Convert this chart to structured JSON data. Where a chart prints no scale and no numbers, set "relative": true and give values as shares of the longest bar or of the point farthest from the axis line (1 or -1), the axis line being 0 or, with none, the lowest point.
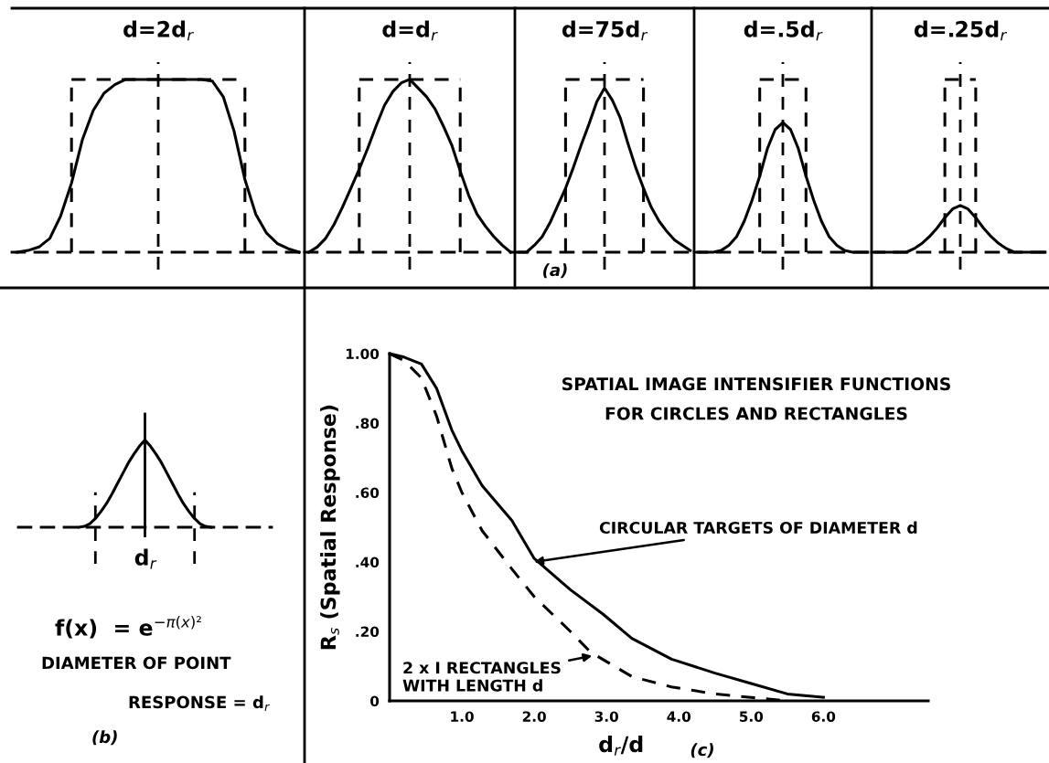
{
  "chart_data": [
    {
      "type": "line",
      "relative": true,
      "title": "d=2d$_{r}$",
      "categories": [
        null,
        null,
        null,
        null,
        null,
        null,
        null,
        null,
        null,
        null,
        null,
        null,
        null,
        null,
        null,
        null,
        null,
        null,
        null,
        null,
        null,
        null,
        null,
        null,
        null,
        null,
        null
      ],
      "series": [
        {
          "type": "line",
          "color": "#000000",
          "line_style": "solid",
          "values": [
            0,
            0.01,
            0.03,
            0.08,
            0.21,
            0.4,
            0.65,
            0.82,
            0.92,
            0.97,
            1,
            1,
            1,
            1,
            1,
            1,
            1,
            1,
            0.99,
            0.9,
            0.7,
            0.42,
            0.22,
            0.11,
            0.05,
            0.02,
            0
          ]
        },
        {
          "type": "step",
          "color": "#000000",
          "line_style": "dashed",
          "values": [
            null,
            null,
            null,
            null,
            null,
            1,
            1,
            1,
            1,
            1,
            1,
            1,
            1,
            1,
            1,
            1,
            1,
            1,
            1,
            1,
            1,
            1,
            null,
            null,
            null,
            null,
            null
          ]
        }
      ]
    },
    {
      "type": "line",
      "relative": true,
      "title": "d=d$_{r}$",
      "categories": [
        null,
        null,
        null,
        null,
        null,
        null,
        null,
        null,
        null,
        null,
        null,
        null,
        null,
        null,
        null,
        null,
        null,
        null,
        null,
        null,
        null,
        null,
        null,
        null,
        null
      ],
      "series": [
        {
          "type": "line",
          "color": "#000000",
          "line_style": "solid",
          "values": [
            0,
            0.03,
            0.08,
            0.16,
            0.26,
            0.37,
            0.48,
            0.6,
            0.73,
            0.85,
            0.93,
            0.98,
            1,
            0.95,
            0.9,
            0.83,
            0.73,
            0.62,
            0.47,
            0.33,
            0.22,
            0.15,
            0.09,
            0.04,
            0
          ]
        },
        {
          "type": "step",
          "color": "#000000",
          "line_style": "dashed",
          "values": [
            null,
            null,
            null,
            null,
            null,
            null,
            1,
            1,
            1,
            1,
            1,
            1,
            1,
            1,
            1,
            1,
            1,
            1,
            1,
            null,
            null,
            null,
            null,
            null,
            null
          ]
        }
      ]
    },
    {
      "type": "line",
      "relative": true,
      "title": "d=75d$_{r}$",
      "annotations": [
        "(a)"
      ],
      "categories": [
        null,
        null,
        null,
        null,
        null,
        null,
        null,
        null,
        null,
        null,
        null,
        null,
        null,
        null,
        null,
        null,
        null,
        null,
        null,
        null,
        null,
        null,
        null
      ],
      "series": [
        {
          "type": "line",
          "color": "#000000",
          "line_style": "solid",
          "values": [
            0,
            0,
            0.04,
            0.09,
            0.17,
            0.27,
            0.37,
            0.49,
            0.62,
            0.74,
            0.87,
            0.95,
            0.88,
            0.78,
            0.63,
            0.49,
            0.37,
            0.26,
            0.18,
            0.12,
            0.07,
            0.04,
            0.01
          ]
        },
        {
          "type": "step",
          "color": "#000000",
          "line_style": "dashed",
          "values": [
            null,
            null,
            null,
            null,
            null,
            null,
            1,
            1,
            1,
            1,
            1,
            1,
            1,
            1,
            1,
            1,
            1,
            null,
            null,
            null,
            null,
            null,
            null
          ]
        }
      ]
    },
    {
      "type": "line",
      "relative": true,
      "title": "d=.5d$_{r}$",
      "categories": [
        null,
        null,
        null,
        null,
        null,
        null,
        null,
        null,
        null,
        null,
        null,
        null,
        null,
        null,
        null,
        null,
        null,
        null,
        null,
        null,
        null,
        null,
        null
      ],
      "series": [
        {
          "type": "line",
          "color": "#000000",
          "line_style": "solid",
          "values": [
            0,
            0,
            0,
            0.01,
            0.04,
            0.09,
            0.18,
            0.3,
            0.44,
            0.6,
            0.71,
            0.75,
            0.71,
            0.6,
            0.44,
            0.3,
            0.18,
            0.09,
            0.04,
            0.01,
            0,
            0,
            0
          ]
        },
        {
          "type": "step",
          "color": "#000000",
          "line_style": "dashed",
          "values": [
            null,
            null,
            null,
            null,
            null,
            null,
            null,
            null,
            1,
            1,
            1,
            1,
            1,
            1,
            1,
            null,
            null,
            null,
            null,
            null,
            null,
            null,
            null
          ]
        }
      ]
    },
    {
      "type": "line",
      "relative": true,
      "title": "d=.25d$_{r}$",
      "categories": [
        null,
        null,
        null,
        null,
        null,
        null,
        null,
        null,
        null,
        null,
        null,
        null,
        null,
        null,
        null,
        null,
        null,
        null,
        null,
        null,
        null,
        null,
        null
      ],
      "series": [
        {
          "type": "line",
          "color": "#000000",
          "line_style": "solid",
          "values": [
            0,
            0,
            0,
            0,
            0,
            0.02,
            0.05,
            0.09,
            0.14,
            0.2,
            0.25,
            0.27,
            0.25,
            0.2,
            0.14,
            0.09,
            0.05,
            0.02,
            0,
            0,
            0,
            0,
            0
          ]
        },
        {
          "type": "step",
          "color": "#000000",
          "line_style": "dashed",
          "values": [
            null,
            null,
            null,
            null,
            null,
            null,
            null,
            null,
            null,
            1,
            1,
            1,
            1,
            1,
            null,
            null,
            null,
            null,
            null,
            null,
            null,
            null,
            null
          ]
        }
      ]
    },
    {
      "type": "line",
      "relative": true,
      "annotations": [
        "d$_{r}$",
        "f(x)  = e$^{−π(x)²}$",
        "DIAMETER OF POINT",
        "RESPONSE = d$_{r}$",
        "(b)"
      ],
      "categories": [
        null,
        null,
        null,
        null,
        null,
        null,
        null,
        null,
        null,
        null,
        null,
        null,
        null,
        null,
        null,
        null,
        null,
        null,
        null,
        null,
        null,
        null,
        null,
        null,
        null
      ],
      "series": [
        {
          "type": "line",
          "color": "#000000",
          "line_style": "solid",
          "values": [
            0,
            0.01,
            0.04,
            0.1,
            0.18,
            0.27,
            0.38,
            0.5,
            0.62,
            0.74,
            0.84,
            0.93,
            1,
            0.93,
            0.84,
            0.74,
            0.62,
            0.5,
            0.38,
            0.27,
            0.18,
            0.1,
            0.04,
            0.01,
            0
          ]
        }
      ]
    },
    {
      "type": "line",
      "title": "SPATIAL IMAGE INTENSIFIER FUNCTIONS\nFOR CIRCLES AND RECTANGLES",
      "xlabel": "d$_{r}$/d",
      "ylabel": "R$_{s}$ (Spatial Response)",
      "xlim": [
        0,
        7.45
      ],
      "xticks": [
        {
          "value": 1,
          "label": "1.0"
        },
        {
          "value": 2,
          "label": "2.0"
        },
        {
          "value": 3,
          "label": "3.0"
        },
        {
          "value": 4,
          "label": "4.0"
        },
        {
          "value": 5,
          "label": "5.0"
        },
        {
          "value": 6,
          "label": "6.0"
        }
      ],
      "ylim": [
        0,
        1
      ],
      "yticks": [
        {
          "value": 0,
          "label": "0"
        },
        {
          "value": 0.2,
          "label": ".20"
        },
        {
          "value": 0.4,
          "label": ".40"
        },
        {
          "value": 0.6,
          "label": ".60"
        },
        {
          "value": 0.8,
          "label": ".80"
        },
        {
          "value": 1,
          "label": "1.00"
        }
      ],
      "series": [
        {
          "color": "#000000",
          "line_style": "solid",
          "x": [
            0,
            0.2,
            0.44,
            0.65,
            0.86,
            1.0,
            1.28,
            1.69,
            2.0,
            2.5,
            2.95,
            3.35,
            3.9,
            4.5,
            5.0,
            5.5,
            6.0
          ],
          "values": [
            1.0,
            0.99,
            0.97,
            0.9,
            0.78,
            0.72,
            0.62,
            0.52,
            0.41,
            0.32,
            0.25,
            0.18,
            0.12,
            0.08,
            0.05,
            0.02,
            0.01
          ]
        },
        {
          "color": "#000000",
          "line_style": "dashed",
          "x": [
            0,
            0.2,
            0.44,
            0.65,
            0.86,
            1.0,
            1.28,
            1.69,
            2.0,
            2.5,
            2.78,
            3.35,
            3.9,
            4.5,
            5.0,
            5.5
          ],
          "values": [
            1.0,
            0.98,
            0.93,
            0.82,
            0.67,
            0.6,
            0.49,
            0.38,
            0.3,
            0.2,
            0.14,
            0.07,
            0.04,
            0.02,
            0.01,
            0
          ]
        }
      ],
      "annotations": [
        {
          "text": "CIRCULAR TARGETS OF DIAMETER d",
          "x": 2.0,
          "y": 0.4
        },
        {
          "text": "2 x I RECTANGLES\nWITH LENGTH d",
          "x": 2.8,
          "y": 0.13
        },
        "(c)"
      ]
    }
  ]
}
